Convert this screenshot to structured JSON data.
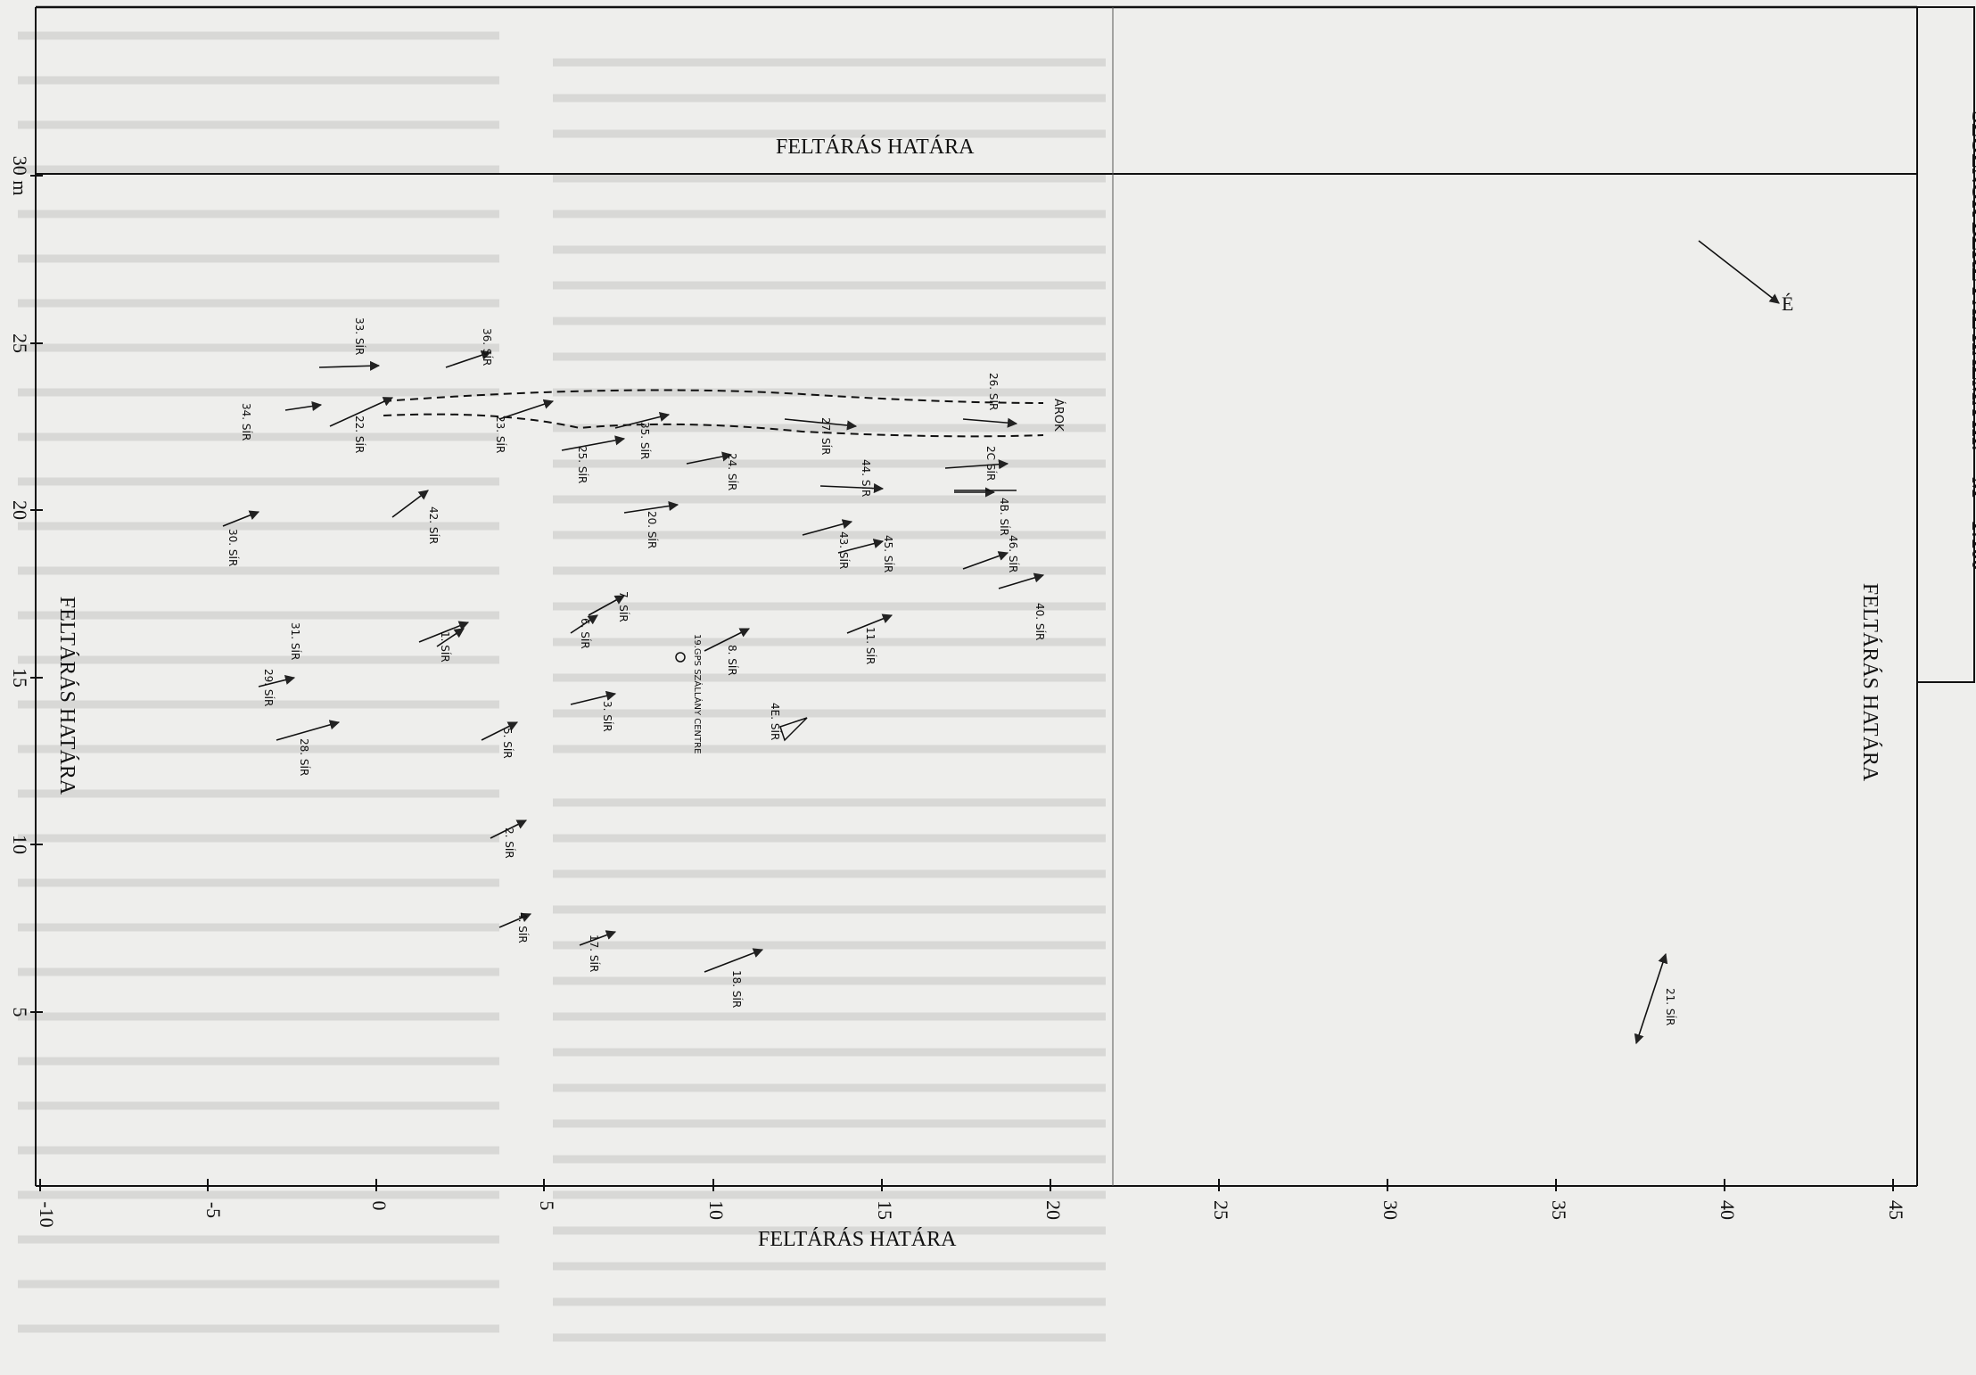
{
  "title": "SZOLNOK BEKE PÁL HALMA III.",
  "scale": "M = 1:100",
  "border_label": "FELTÁRÁS HATÁRA",
  "north_label": "É",
  "ditch_label": "ÁROK",
  "survey_point": "19.GPS SZÁLLÁNY CENTRE",
  "axes": {
    "x_ticks": [
      "-10",
      "-5",
      "0",
      "5",
      "10",
      "15",
      "20",
      "25",
      "30",
      "35",
      "40",
      "45"
    ],
    "y_ticks": [
      "5",
      "10",
      "15",
      "20",
      "25",
      "30 m"
    ]
  },
  "graves": [
    {
      "label": "33. SÍR"
    },
    {
      "label": "34. SÍR"
    },
    {
      "label": "36. SÍR"
    },
    {
      "label": "22. SÍR"
    },
    {
      "label": "23. SÍR"
    },
    {
      "label": "25. SÍR"
    },
    {
      "label": "35. SÍR"
    },
    {
      "label": "24. SÍR"
    },
    {
      "label": "27. SÍR"
    },
    {
      "label": "26. SÍR"
    },
    {
      "label": "44. SÍR"
    },
    {
      "label": "2C SÍR"
    },
    {
      "label": "4B. SÍR"
    },
    {
      "label": "30. SÍR"
    },
    {
      "label": "42. SÍR"
    },
    {
      "label": "20. SÍR"
    },
    {
      "label": "43. SÍR"
    },
    {
      "label": "45. SÍR"
    },
    {
      "label": "46. SÍR"
    },
    {
      "label": "40. SÍR"
    },
    {
      "label": "31. SÍR"
    },
    {
      "label": "1. SÍR"
    },
    {
      "label": "7. SÍR"
    },
    {
      "label": "6. SÍR"
    },
    {
      "label": "8. SÍR"
    },
    {
      "label": "11. SÍR"
    },
    {
      "label": "29. SÍR"
    },
    {
      "label": "28. SÍR"
    },
    {
      "label": "5. SÍR"
    },
    {
      "label": "3. SÍR"
    },
    {
      "label": "4E. SÍR"
    },
    {
      "label": "2. SÍR"
    },
    {
      "label": "4. SÍR"
    },
    {
      "label": "17. SÍR"
    },
    {
      "label": "18. SÍR"
    },
    {
      "label": "21. SÍR"
    }
  ]
}
